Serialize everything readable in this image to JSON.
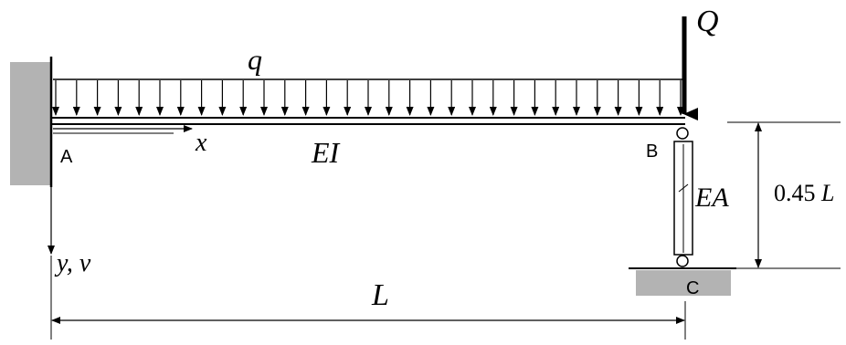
{
  "labels": {
    "q": "q",
    "Q": "Q",
    "A": "A",
    "B": "B",
    "C": "C",
    "x": "x",
    "EI": "EI",
    "EA": "EA",
    "yv": "y, v",
    "L": "L",
    "height_coef": "0.45",
    "height_var": "L"
  },
  "colors": {
    "line": "#000000",
    "support_fill": "#b3b3b3"
  }
}
